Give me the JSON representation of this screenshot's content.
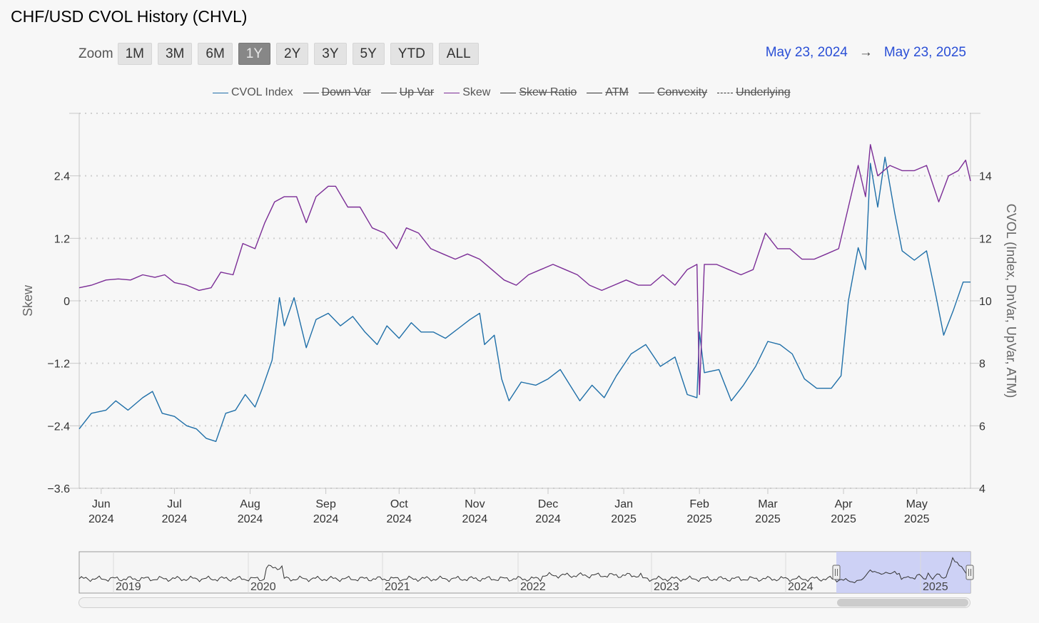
{
  "page": {
    "title": "CHF/USD CVOL History (CHVL)"
  },
  "zoom": {
    "label": "Zoom",
    "buttons": [
      "1M",
      "3M",
      "6M",
      "1Y",
      "2Y",
      "3Y",
      "5Y",
      "YTD",
      "ALL"
    ],
    "active": "1Y"
  },
  "range": {
    "from": "May 23, 2024",
    "arrow": "→",
    "to": "May 23, 2025"
  },
  "legend": [
    {
      "label": "CVOL Index",
      "color": "#1f6fa8",
      "dashed": false,
      "visible": true
    },
    {
      "label": "Down Var",
      "color": "#333333",
      "dashed": false,
      "visible": false
    },
    {
      "label": "Up Var",
      "color": "#333333",
      "dashed": false,
      "visible": false
    },
    {
      "label": "Skew",
      "color": "#7b2d96",
      "dashed": false,
      "visible": true
    },
    {
      "label": "Skew Ratio",
      "color": "#333333",
      "dashed": false,
      "visible": false
    },
    {
      "label": "ATM",
      "color": "#333333",
      "dashed": false,
      "visible": false
    },
    {
      "label": "Convexity",
      "color": "#333333",
      "dashed": false,
      "visible": false
    },
    {
      "label": "Underlying",
      "color": "#333333",
      "dashed": true,
      "visible": false
    }
  ],
  "navigator": {
    "year_labels": [
      "2019",
      "2020",
      "2021",
      "2022",
      "2023",
      "2024",
      "2025"
    ],
    "selected_range": [
      "2024-05-23",
      "2025-05-23"
    ],
    "fill_color": "#c9cdf5"
  },
  "chart_data": {
    "type": "line",
    "title": "",
    "xlabel": "",
    "ylabel_left": "Skew",
    "ylabel_right": "CVOL (Index, DnVar, UpVar, ATM)",
    "x_range": [
      "2024-05-23",
      "2025-05-23"
    ],
    "ylim_left": [
      -3.6,
      3.6
    ],
    "ylim_right": [
      4,
      16
    ],
    "yticks_left": [
      "2.4",
      "1.2",
      "0",
      "−1.2",
      "−2.4",
      "−3.6"
    ],
    "yticks_left_values": [
      2.4,
      1.2,
      0,
      -1.2,
      -2.4,
      -3.6
    ],
    "yticks_right": [
      "14",
      "12",
      "10",
      "8",
      "6",
      "4"
    ],
    "yticks_right_values": [
      14,
      12,
      10,
      8,
      6,
      4
    ],
    "grid": true,
    "legend_position": "top-center",
    "xticks": [
      {
        "date": "2024-06-01",
        "month": "Jun",
        "year": "2024"
      },
      {
        "date": "2024-07-01",
        "month": "Jul",
        "year": "2024"
      },
      {
        "date": "2024-08-01",
        "month": "Aug",
        "year": "2024"
      },
      {
        "date": "2024-09-01",
        "month": "Sep",
        "year": "2024"
      },
      {
        "date": "2024-10-01",
        "month": "Oct",
        "year": "2024"
      },
      {
        "date": "2024-11-01",
        "month": "Nov",
        "year": "2024"
      },
      {
        "date": "2024-12-01",
        "month": "Dec",
        "year": "2024"
      },
      {
        "date": "2025-01-01",
        "month": "Jan",
        "year": "2025"
      },
      {
        "date": "2025-02-01",
        "month": "Feb",
        "year": "2025"
      },
      {
        "date": "2025-03-01",
        "month": "Mar",
        "year": "2025"
      },
      {
        "date": "2025-04-01",
        "month": "Apr",
        "year": "2025"
      },
      {
        "date": "2025-05-01",
        "month": "May",
        "year": "2025"
      }
    ],
    "series": [
      {
        "name": "CVOL Index",
        "axis": "right",
        "color": "#1f6fa8",
        "points": [
          [
            "2024-05-23",
            5.9
          ],
          [
            "2024-05-28",
            6.4
          ],
          [
            "2024-06-03",
            6.5
          ],
          [
            "2024-06-07",
            6.8
          ],
          [
            "2024-06-12",
            6.5
          ],
          [
            "2024-06-18",
            6.9
          ],
          [
            "2024-06-22",
            7.1
          ],
          [
            "2024-06-26",
            6.4
          ],
          [
            "2024-07-01",
            6.3
          ],
          [
            "2024-07-06",
            6.0
          ],
          [
            "2024-07-10",
            5.9
          ],
          [
            "2024-07-14",
            5.6
          ],
          [
            "2024-07-18",
            5.5
          ],
          [
            "2024-07-22",
            6.4
          ],
          [
            "2024-07-26",
            6.5
          ],
          [
            "2024-07-30",
            7.0
          ],
          [
            "2024-08-03",
            6.6
          ],
          [
            "2024-08-06",
            7.2
          ],
          [
            "2024-08-10",
            8.1
          ],
          [
            "2024-08-13",
            10.1
          ],
          [
            "2024-08-15",
            9.2
          ],
          [
            "2024-08-19",
            10.1
          ],
          [
            "2024-08-24",
            8.5
          ],
          [
            "2024-08-28",
            9.4
          ],
          [
            "2024-09-02",
            9.6
          ],
          [
            "2024-09-07",
            9.2
          ],
          [
            "2024-09-12",
            9.5
          ],
          [
            "2024-09-17",
            9.0
          ],
          [
            "2024-09-22",
            8.6
          ],
          [
            "2024-09-26",
            9.2
          ],
          [
            "2024-10-01",
            8.8
          ],
          [
            "2024-10-06",
            9.3
          ],
          [
            "2024-10-10",
            9.0
          ],
          [
            "2024-10-15",
            9.0
          ],
          [
            "2024-10-20",
            8.8
          ],
          [
            "2024-10-25",
            9.1
          ],
          [
            "2024-10-30",
            9.4
          ],
          [
            "2024-11-03",
            9.6
          ],
          [
            "2024-11-05",
            8.6
          ],
          [
            "2024-11-09",
            8.9
          ],
          [
            "2024-11-12",
            7.5
          ],
          [
            "2024-11-15",
            6.8
          ],
          [
            "2024-11-20",
            7.4
          ],
          [
            "2024-11-26",
            7.3
          ],
          [
            "2024-12-01",
            7.5
          ],
          [
            "2024-12-06",
            7.8
          ],
          [
            "2024-12-10",
            7.3
          ],
          [
            "2024-12-14",
            6.8
          ],
          [
            "2024-12-19",
            7.3
          ],
          [
            "2024-12-24",
            6.9
          ],
          [
            "2024-12-29",
            7.6
          ],
          [
            "2025-01-04",
            8.3
          ],
          [
            "2025-01-10",
            8.6
          ],
          [
            "2025-01-16",
            7.9
          ],
          [
            "2025-01-22",
            8.2
          ],
          [
            "2025-01-27",
            7.0
          ],
          [
            "2025-01-31",
            6.9
          ],
          [
            "2025-02-01",
            9.0
          ],
          [
            "2025-02-03",
            7.7
          ],
          [
            "2025-02-09",
            7.8
          ],
          [
            "2025-02-14",
            6.8
          ],
          [
            "2025-02-19",
            7.3
          ],
          [
            "2025-02-24",
            7.9
          ],
          [
            "2025-03-01",
            8.7
          ],
          [
            "2025-03-06",
            8.6
          ],
          [
            "2025-03-11",
            8.3
          ],
          [
            "2025-03-16",
            7.5
          ],
          [
            "2025-03-21",
            7.2
          ],
          [
            "2025-03-27",
            7.2
          ],
          [
            "2025-03-31",
            7.6
          ],
          [
            "2025-04-03",
            10.0
          ],
          [
            "2025-04-07",
            11.7
          ],
          [
            "2025-04-10",
            11.0
          ],
          [
            "2025-04-12",
            14.4
          ],
          [
            "2025-04-15",
            13.0
          ],
          [
            "2025-04-18",
            14.6
          ],
          [
            "2025-04-22",
            12.8
          ],
          [
            "2025-04-25",
            11.6
          ],
          [
            "2025-04-30",
            11.3
          ],
          [
            "2025-05-05",
            11.6
          ],
          [
            "2025-05-09",
            10.1
          ],
          [
            "2025-05-12",
            8.9
          ],
          [
            "2025-05-16",
            9.7
          ],
          [
            "2025-05-20",
            10.6
          ],
          [
            "2025-05-23",
            10.6
          ]
        ]
      },
      {
        "name": "Skew",
        "axis": "left",
        "color": "#7b2d96",
        "points": [
          [
            "2024-05-23",
            0.25
          ],
          [
            "2024-05-28",
            0.3
          ],
          [
            "2024-06-03",
            0.4
          ],
          [
            "2024-06-08",
            0.42
          ],
          [
            "2024-06-13",
            0.4
          ],
          [
            "2024-06-18",
            0.5
          ],
          [
            "2024-06-23",
            0.45
          ],
          [
            "2024-06-27",
            0.5
          ],
          [
            "2024-07-01",
            0.35
          ],
          [
            "2024-07-06",
            0.3
          ],
          [
            "2024-07-11",
            0.2
          ],
          [
            "2024-07-16",
            0.25
          ],
          [
            "2024-07-20",
            0.55
          ],
          [
            "2024-07-25",
            0.5
          ],
          [
            "2024-07-29",
            1.1
          ],
          [
            "2024-08-03",
            1.0
          ],
          [
            "2024-08-07",
            1.5
          ],
          [
            "2024-08-11",
            1.9
          ],
          [
            "2024-08-15",
            2.0
          ],
          [
            "2024-08-20",
            2.0
          ],
          [
            "2024-08-24",
            1.5
          ],
          [
            "2024-08-28",
            2.0
          ],
          [
            "2024-09-02",
            2.2
          ],
          [
            "2024-09-05",
            2.2
          ],
          [
            "2024-09-10",
            1.8
          ],
          [
            "2024-09-15",
            1.8
          ],
          [
            "2024-09-20",
            1.4
          ],
          [
            "2024-09-25",
            1.3
          ],
          [
            "2024-09-30",
            1.0
          ],
          [
            "2024-10-04",
            1.4
          ],
          [
            "2024-10-09",
            1.3
          ],
          [
            "2024-10-14",
            1.0
          ],
          [
            "2024-10-19",
            0.9
          ],
          [
            "2024-10-24",
            0.8
          ],
          [
            "2024-10-29",
            0.9
          ],
          [
            "2024-11-03",
            0.8
          ],
          [
            "2024-11-08",
            0.6
          ],
          [
            "2024-11-13",
            0.4
          ],
          [
            "2024-11-18",
            0.3
          ],
          [
            "2024-11-23",
            0.5
          ],
          [
            "2024-11-28",
            0.6
          ],
          [
            "2024-12-03",
            0.7
          ],
          [
            "2024-12-08",
            0.6
          ],
          [
            "2024-12-13",
            0.5
          ],
          [
            "2024-12-18",
            0.3
          ],
          [
            "2024-12-23",
            0.2
          ],
          [
            "2024-12-28",
            0.3
          ],
          [
            "2025-01-02",
            0.4
          ],
          [
            "2025-01-07",
            0.3
          ],
          [
            "2025-01-12",
            0.3
          ],
          [
            "2025-01-17",
            0.5
          ],
          [
            "2025-01-22",
            0.3
          ],
          [
            "2025-01-27",
            0.6
          ],
          [
            "2025-01-31",
            0.7
          ],
          [
            "2025-02-01",
            -1.8
          ],
          [
            "2025-02-03",
            0.7
          ],
          [
            "2025-02-08",
            0.7
          ],
          [
            "2025-02-13",
            0.6
          ],
          [
            "2025-02-18",
            0.5
          ],
          [
            "2025-02-23",
            0.6
          ],
          [
            "2025-02-28",
            1.3
          ],
          [
            "2025-03-05",
            1.0
          ],
          [
            "2025-03-10",
            1.0
          ],
          [
            "2025-03-15",
            0.8
          ],
          [
            "2025-03-20",
            0.8
          ],
          [
            "2025-03-25",
            0.9
          ],
          [
            "2025-03-30",
            1.0
          ],
          [
            "2025-04-03",
            1.8
          ],
          [
            "2025-04-07",
            2.6
          ],
          [
            "2025-04-10",
            2.0
          ],
          [
            "2025-04-12",
            3.0
          ],
          [
            "2025-04-15",
            2.4
          ],
          [
            "2025-04-20",
            2.6
          ],
          [
            "2025-04-25",
            2.5
          ],
          [
            "2025-04-30",
            2.5
          ],
          [
            "2025-05-05",
            2.6
          ],
          [
            "2025-05-10",
            1.9
          ],
          [
            "2025-05-14",
            2.4
          ],
          [
            "2025-05-18",
            2.5
          ],
          [
            "2025-05-21",
            2.7
          ],
          [
            "2025-05-23",
            2.3
          ]
        ]
      }
    ]
  }
}
